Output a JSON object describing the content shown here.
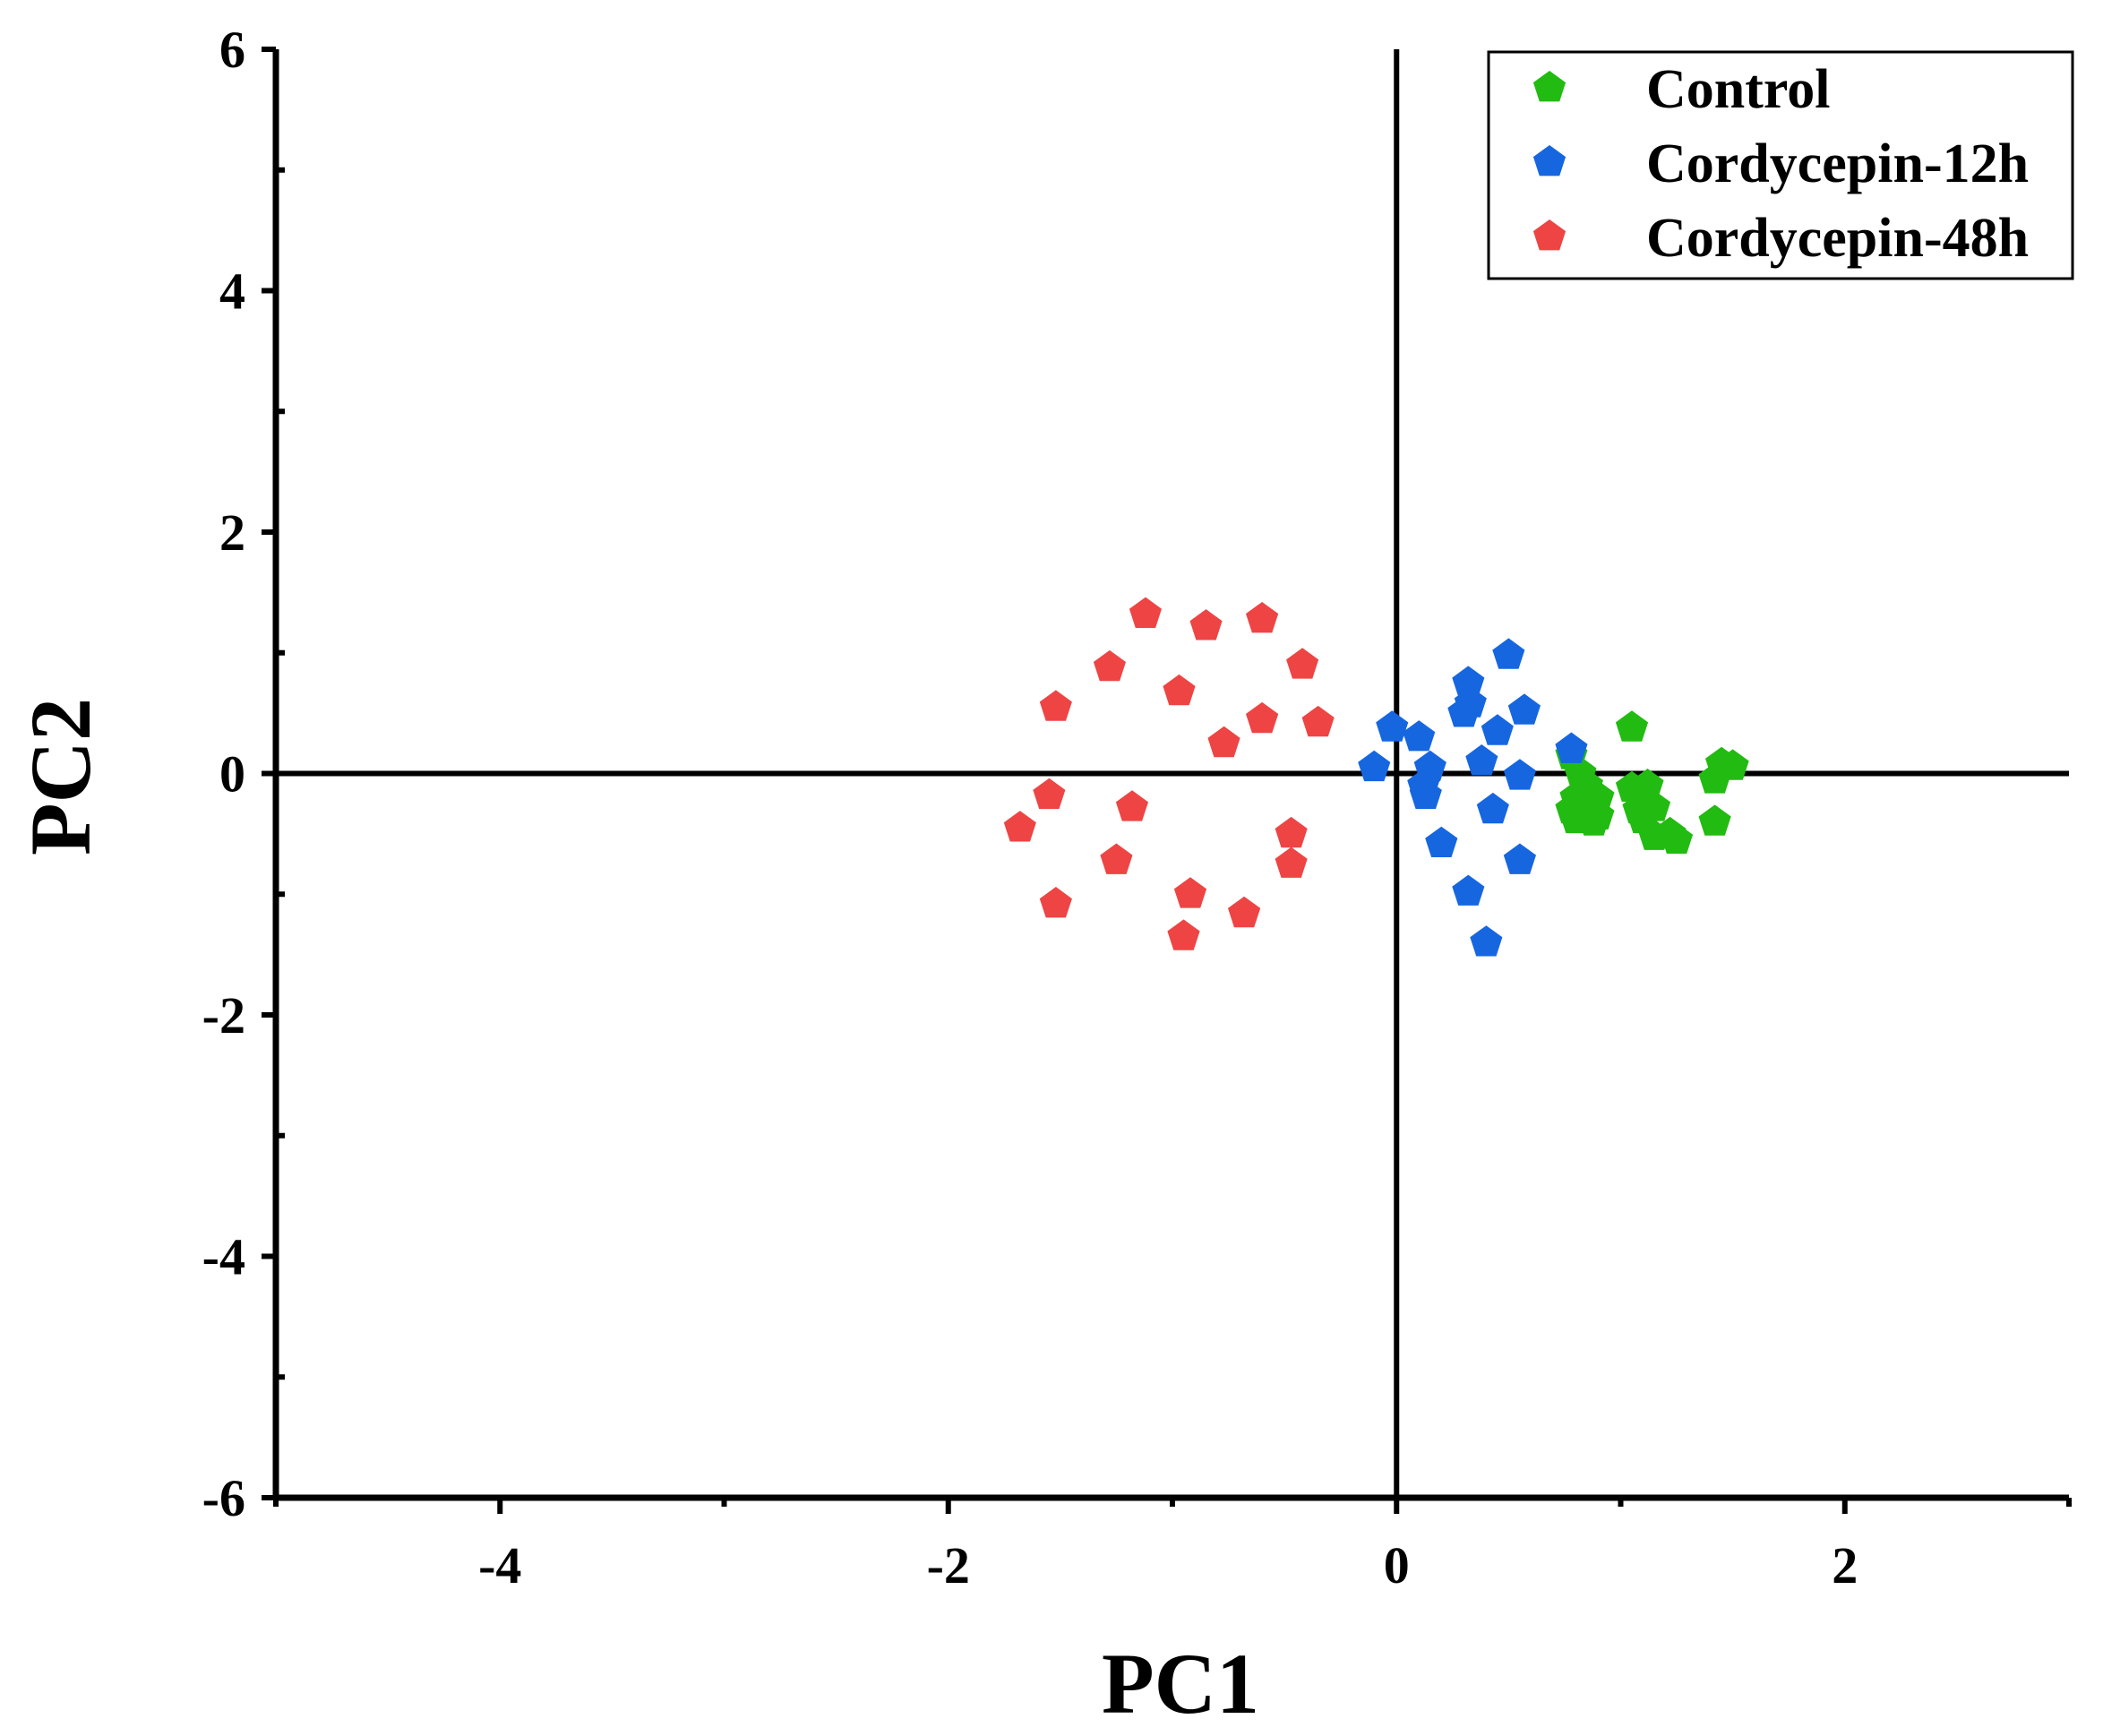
{
  "chart_data": {
    "type": "scatter",
    "title": "",
    "xlabel": "PC1",
    "ylabel": "PC2",
    "xlim": [
      -5,
      3
    ],
    "ylim": [
      -6,
      6
    ],
    "x_ticks": [
      -4,
      -2,
      0,
      2
    ],
    "y_ticks": [
      6,
      4,
      2,
      0,
      -2,
      -4,
      -6
    ],
    "x_tick_labels": [
      "-4",
      "-2",
      "0",
      "2"
    ],
    "y_tick_labels": [
      "6",
      "4",
      "2",
      "0",
      "-2",
      "-4",
      "-6"
    ],
    "reference_lines": {
      "x": 0,
      "y": 0
    },
    "grid": false,
    "legend_position": "top-right",
    "marker": "pentagon",
    "series": [
      {
        "name": "Control",
        "color": "#22bb11",
        "points": [
          [
            0.78,
            0.15
          ],
          [
            0.82,
            0.0
          ],
          [
            0.85,
            -0.1
          ],
          [
            0.8,
            -0.2
          ],
          [
            0.9,
            -0.2
          ],
          [
            0.78,
            -0.3
          ],
          [
            0.9,
            -0.35
          ],
          [
            0.8,
            -0.38
          ],
          [
            0.88,
            -0.4
          ],
          [
            1.05,
            0.38
          ],
          [
            1.05,
            -0.12
          ],
          [
            1.12,
            -0.1
          ],
          [
            1.08,
            -0.3
          ],
          [
            1.15,
            -0.28
          ],
          [
            1.1,
            -0.38
          ],
          [
            1.15,
            -0.52
          ],
          [
            1.25,
            -0.55
          ],
          [
            1.22,
            -0.5
          ],
          [
            1.42,
            -0.05
          ],
          [
            1.45,
            0.08
          ],
          [
            1.5,
            0.06
          ],
          [
            1.42,
            -0.4
          ]
        ]
      },
      {
        "name": "Cordycepin-12h",
        "color": "#1666e0",
        "points": [
          [
            -0.1,
            0.05
          ],
          [
            -0.02,
            0.38
          ],
          [
            0.1,
            0.3
          ],
          [
            0.15,
            0.05
          ],
          [
            0.12,
            -0.1
          ],
          [
            0.13,
            -0.18
          ],
          [
            0.2,
            -0.58
          ],
          [
            0.3,
            0.5
          ],
          [
            0.32,
            0.75
          ],
          [
            0.33,
            0.58
          ],
          [
            0.38,
            0.1
          ],
          [
            0.45,
            0.35
          ],
          [
            0.5,
            0.98
          ],
          [
            0.57,
            0.52
          ],
          [
            0.55,
            -0.02
          ],
          [
            0.43,
            -0.3
          ],
          [
            0.32,
            -0.98
          ],
          [
            0.4,
            -1.4
          ],
          [
            0.55,
            -0.72
          ],
          [
            0.78,
            0.2
          ]
        ]
      },
      {
        "name": "Cordycepin-48h",
        "color": "#ee4444",
        "points": [
          [
            -1.68,
            -0.45
          ],
          [
            -1.55,
            -0.18
          ],
          [
            -1.52,
            0.55
          ],
          [
            -1.52,
            -1.08
          ],
          [
            -1.28,
            0.88
          ],
          [
            -1.25,
            -0.72
          ],
          [
            -1.18,
            -0.28
          ],
          [
            -1.12,
            1.32
          ],
          [
            -0.97,
            0.68
          ],
          [
            -0.95,
            -1.35
          ],
          [
            -0.92,
            -1.0
          ],
          [
            -0.85,
            1.22
          ],
          [
            -0.77,
            0.25
          ],
          [
            -0.68,
            -1.16
          ],
          [
            -0.6,
            1.28
          ],
          [
            -0.6,
            0.45
          ],
          [
            -0.47,
            -0.5
          ],
          [
            -0.47,
            -0.75
          ],
          [
            -0.42,
            0.9
          ],
          [
            -0.35,
            0.42
          ]
        ]
      }
    ]
  }
}
